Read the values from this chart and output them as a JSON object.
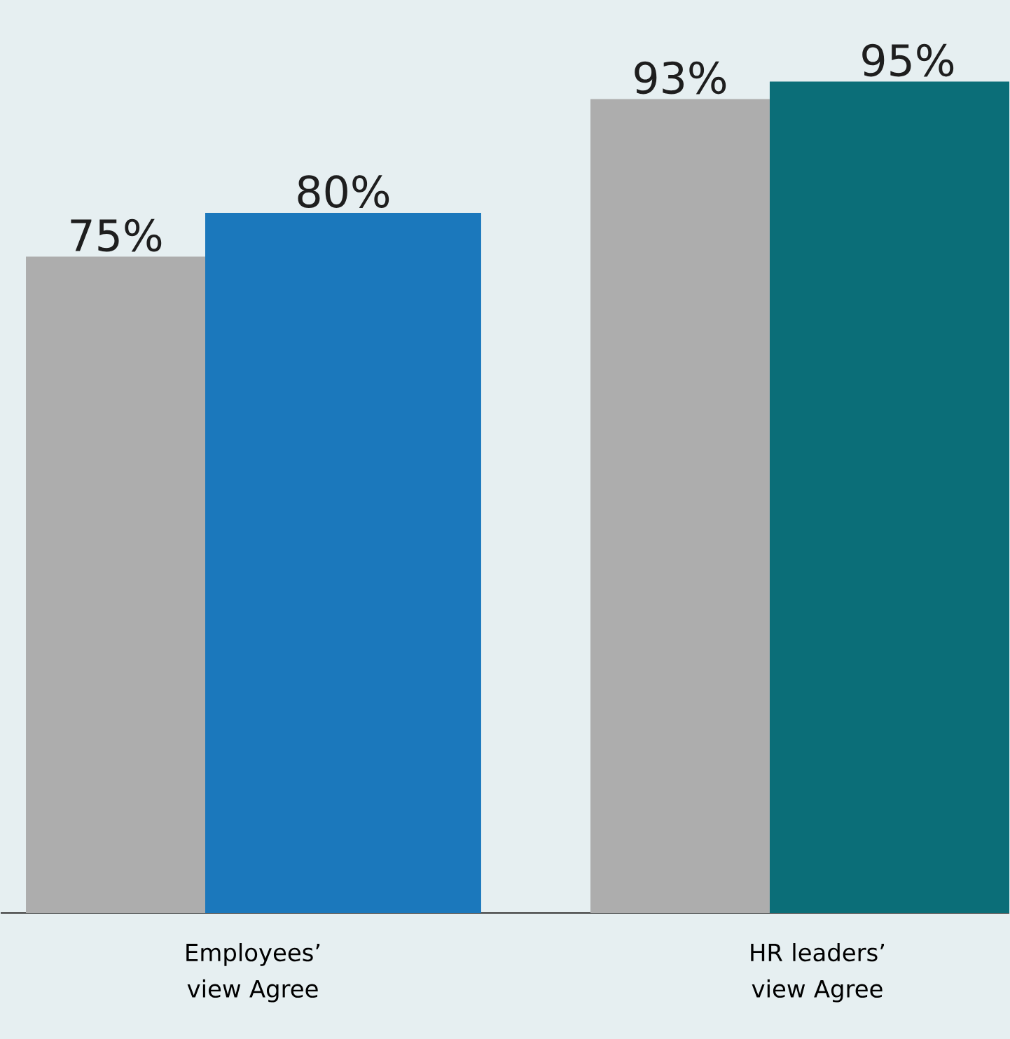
{
  "chart_data": {
    "type": "bar",
    "categories": [
      "Employees’ view Agree",
      "HR leaders’ view Agree"
    ],
    "series": [
      {
        "color": "#adadad",
        "values": [
          75,
          93
        ],
        "value_labels": [
          "75%",
          "93%"
        ]
      },
      {
        "colors": [
          "#1b78bc",
          "#0b6e78"
        ],
        "values": [
          80,
          95
        ],
        "value_labels": [
          "80%",
          "95%"
        ]
      }
    ]
  }
}
